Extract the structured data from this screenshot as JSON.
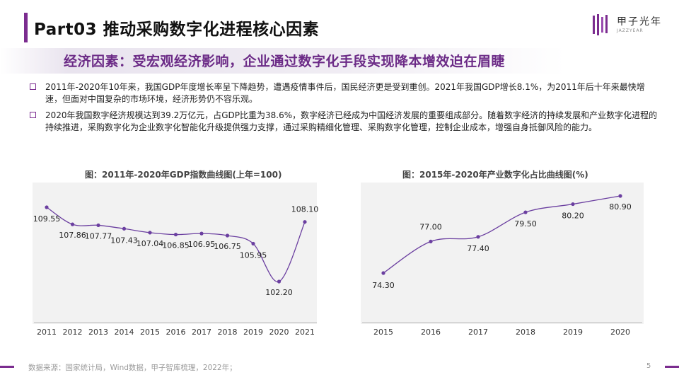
{
  "header": {
    "title": "Part03 推动采购数字化进程核心因素",
    "logo_text": "甲子光年",
    "logo_sub": "JAZZYEAR"
  },
  "subtitle": "经济因素：受宏观经济影响，企业通过数字化手段实现降本增效迫在眉睫",
  "bullets": [
    "2011年-2020年10年来，我国GDP年度增长率呈下降趋势，遭遇疫情事件后，国民经济更是受到重创。2021年我国GDP增长8.1%，为2011年后十年来最快增速，但面对中国复杂的市场环境，经济形势仍不容乐观。",
    "2020年我国数字经济规模达到39.2万亿元，占GDP比重为38.6%，数字经济已经成为中国经济发展的重要组成部分。随着数字经济的持续发展和产业数字化进程的持续推进，采购数字化为企业数字化智能化升级提供强力支撑，通过采购精细化管理、采购数字化管理，控制企业成本，增强自身抵御风险的能力。"
  ],
  "footer": {
    "source": "数据来源：国家统计局，Wind数据，甲子智库梳理，2022年；",
    "page": "5"
  },
  "colors": {
    "accent": "#7b2c8f",
    "line": "#6b3fa0",
    "panel": "#f2f2f2"
  },
  "chart_data": [
    {
      "type": "line",
      "title": "图：2011年-2020年GDP指数曲线图(上年=100)",
      "categories": [
        "2011",
        "2012",
        "2013",
        "2014",
        "2015",
        "2016",
        "2017",
        "2018",
        "2019",
        "2020",
        "2021"
      ],
      "values": [
        109.55,
        107.86,
        107.77,
        107.43,
        107.04,
        106.85,
        106.95,
        106.75,
        105.95,
        102.2,
        108.1
      ],
      "labels": [
        "109.55",
        "107.86",
        "107.77",
        "107.43",
        "107.04",
        "106.85",
        "106.95",
        "106.75",
        "105.95",
        "102.20",
        "108.10"
      ],
      "grid": false
    },
    {
      "type": "line",
      "title": "图：2015年-2020年产业数字化占比曲线图(%)",
      "categories": [
        "2015",
        "2016",
        "2017",
        "2018",
        "2019",
        "2020"
      ],
      "values": [
        74.3,
        77.0,
        77.4,
        79.5,
        80.2,
        80.9
      ],
      "labels": [
        "74.30",
        "77.00",
        "77.40",
        "79.50",
        "80.20",
        "80.90"
      ],
      "grid": false
    }
  ]
}
